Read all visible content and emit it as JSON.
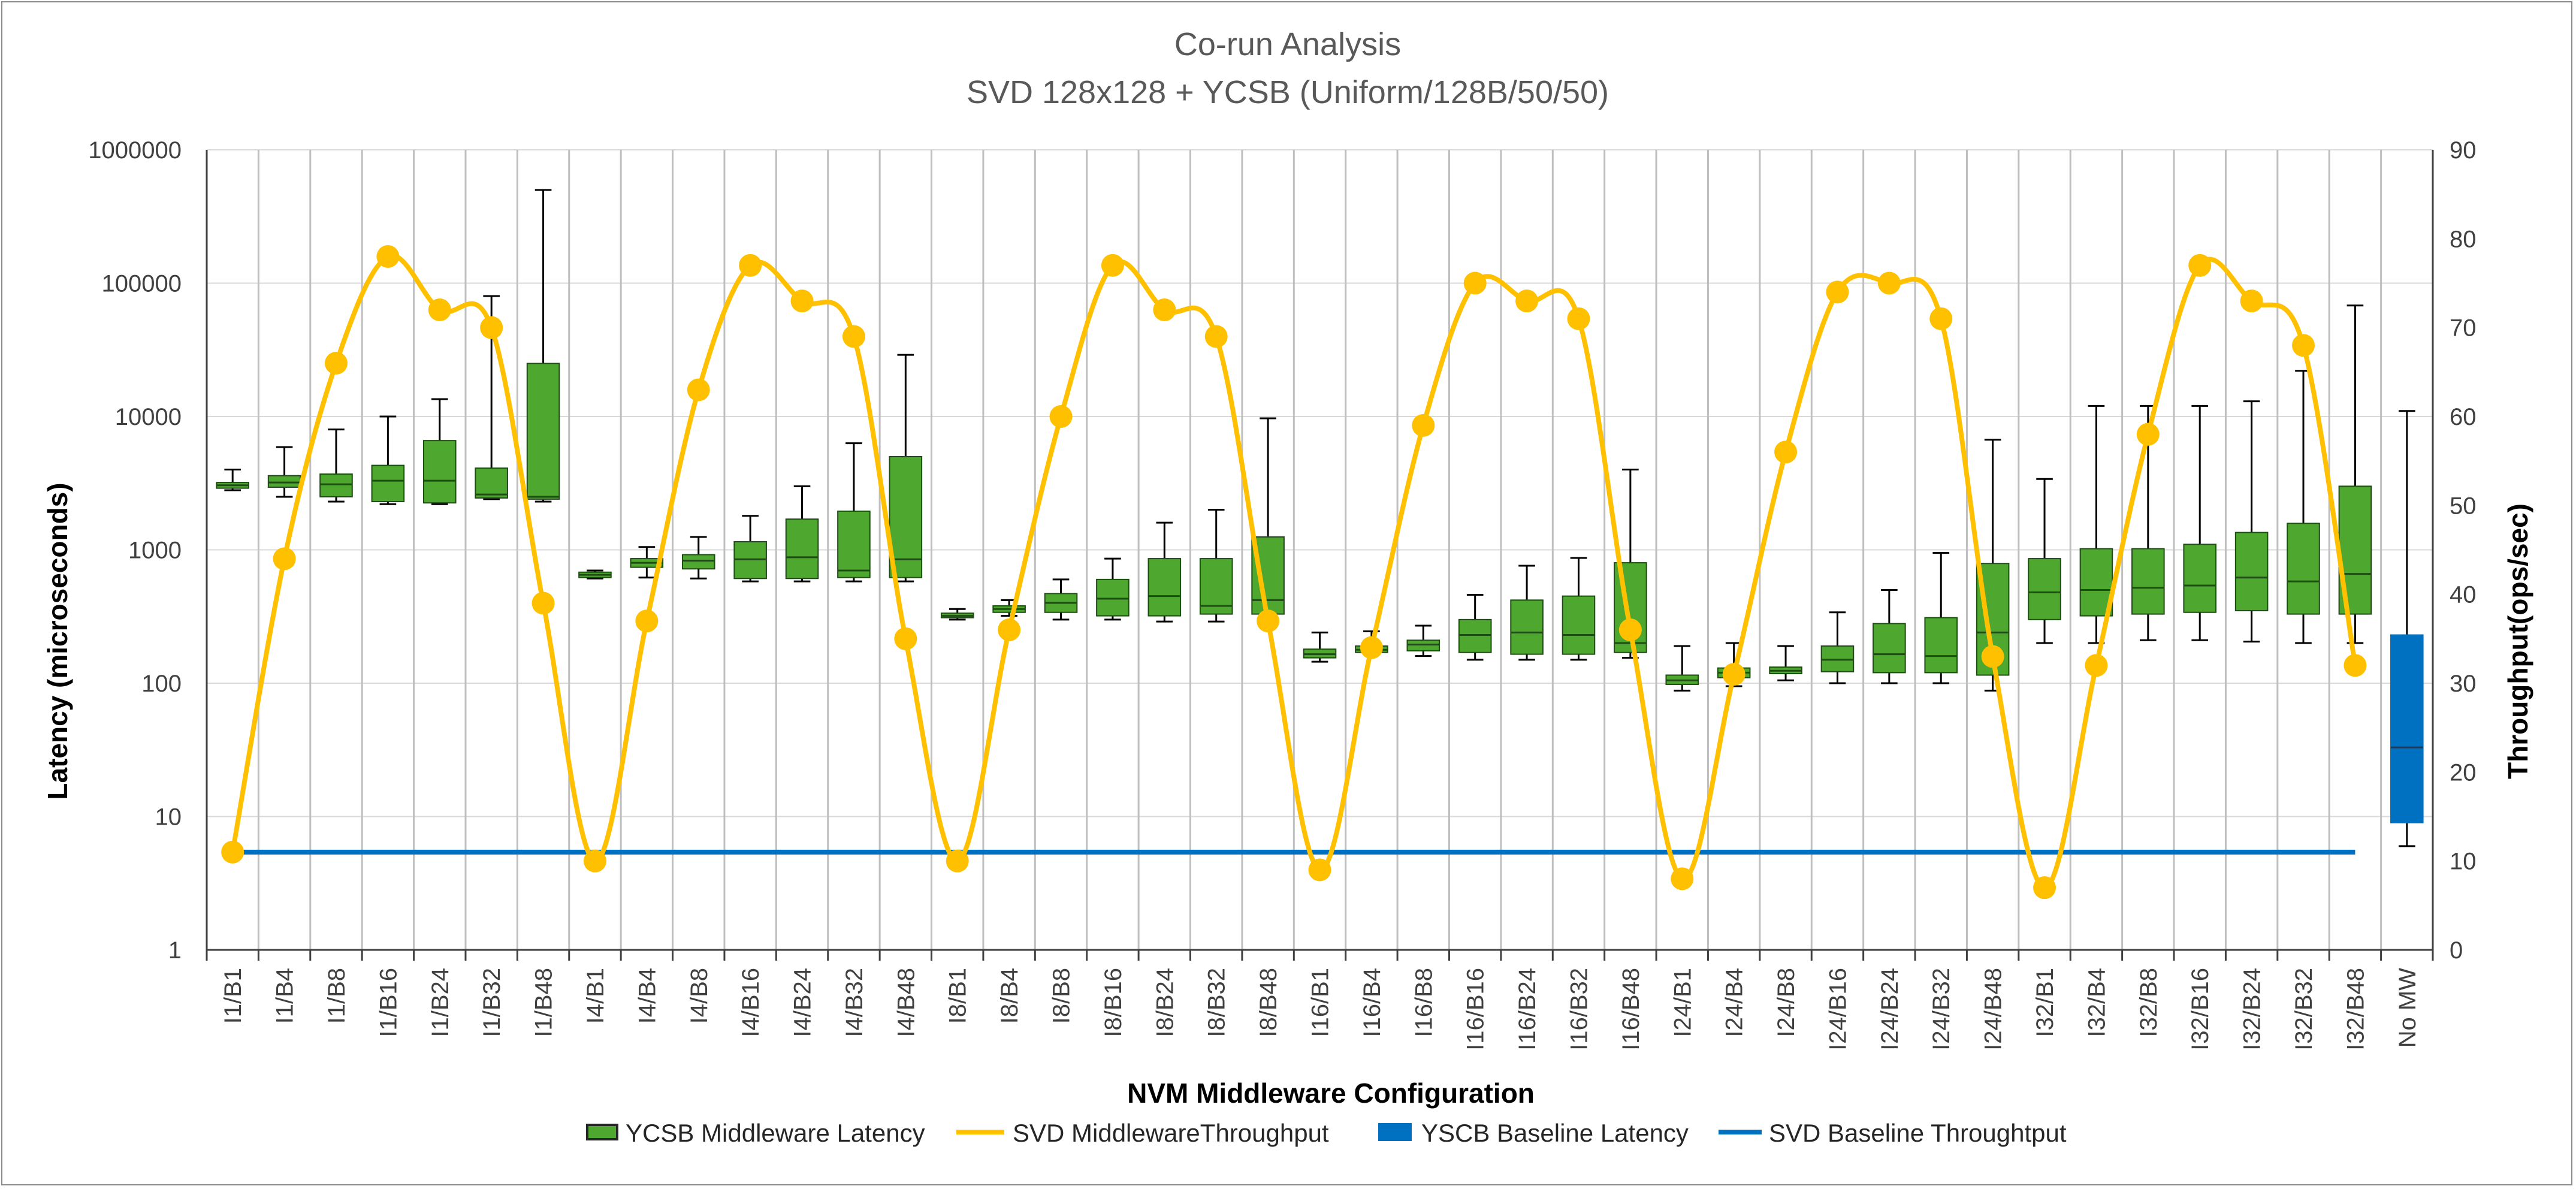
{
  "chart_data": {
    "type": "box",
    "title": "Co-run Analysis",
    "subtitle": "SVD 128x128 + YCSB (Uniform/128B/50/50)",
    "xlabel": "NVM Middleware Configuration",
    "ylabel": "Latency (microseconds)",
    "y2label": "Throughput(ops/sec)",
    "yscale": "log",
    "ylim": [
      1,
      1000000
    ],
    "y_ticks": [
      "1",
      "10",
      "100",
      "1000",
      "10000",
      "100000",
      "1000000"
    ],
    "y2lim": [
      0,
      90
    ],
    "y2_ticks": [
      "0",
      "10",
      "20",
      "30",
      "40",
      "50",
      "60",
      "70",
      "80",
      "90"
    ],
    "grid": true,
    "legend_position": "bottom",
    "categories": [
      "I1/B1",
      "I1/B4",
      "I1/B8",
      "I1/B16",
      "I1/B24",
      "I1/B32",
      "I1/B48",
      "I4/B1",
      "I4/B4",
      "I4/B8",
      "I4/B16",
      "I4/B24",
      "I4/B32",
      "I4/B48",
      "I8/B1",
      "I8/B4",
      "I8/B8",
      "I8/B16",
      "I8/B24",
      "I8/B32",
      "I8/B48",
      "I16/B1",
      "I16/B4",
      "I16/B8",
      "I16/B16",
      "I16/B24",
      "I16/B32",
      "I16/B48",
      "I24/B1",
      "I24/B4",
      "I24/B8",
      "I24/B16",
      "I24/B24",
      "I24/B32",
      "I24/B48",
      "I32/B1",
      "I32/B4",
      "I32/B8",
      "I32/B16",
      "I32/B24",
      "I32/B32",
      "I32/B48",
      "No MW"
    ],
    "series": [
      {
        "name": "YCSB Middleware Latency",
        "type": "box",
        "axis": "left",
        "color": "#4ea72e",
        "boxes": [
          {
            "min": 2800,
            "q1": 2900,
            "median": 3050,
            "q3": 3200,
            "max": 4000
          },
          {
            "min": 2500,
            "q1": 2950,
            "median": 3200,
            "q3": 3600,
            "max": 5900
          },
          {
            "min": 2300,
            "q1": 2500,
            "median": 3100,
            "q3": 3700,
            "max": 8000
          },
          {
            "min": 2200,
            "q1": 2300,
            "median": 3300,
            "q3": 4300,
            "max": 10000
          },
          {
            "min": 2200,
            "q1": 2250,
            "median": 3300,
            "q3": 6600,
            "max": 13500
          },
          {
            "min": 2400,
            "q1": 2450,
            "median": 2600,
            "q3": 4100,
            "max": 80000
          },
          {
            "min": 2300,
            "q1": 2400,
            "median": 2500,
            "q3": 25000,
            "max": 500000
          },
          {
            "min": 610,
            "q1": 620,
            "median": 650,
            "q3": 680,
            "max": 700
          },
          {
            "min": 620,
            "q1": 740,
            "median": 800,
            "q3": 860,
            "max": 1050
          },
          {
            "min": 610,
            "q1": 720,
            "median": 830,
            "q3": 920,
            "max": 1250
          },
          {
            "min": 580,
            "q1": 610,
            "median": 850,
            "q3": 1150,
            "max": 1800
          },
          {
            "min": 580,
            "q1": 610,
            "median": 880,
            "q3": 1700,
            "max": 3000
          },
          {
            "min": 580,
            "q1": 620,
            "median": 700,
            "q3": 1950,
            "max": 6300
          },
          {
            "min": 580,
            "q1": 620,
            "median": 850,
            "q3": 5000,
            "max": 29000
          },
          {
            "min": 300,
            "q1": 310,
            "median": 320,
            "q3": 335,
            "max": 360
          },
          {
            "min": 320,
            "q1": 340,
            "median": 360,
            "q3": 380,
            "max": 420
          },
          {
            "min": 300,
            "q1": 340,
            "median": 400,
            "q3": 470,
            "max": 600
          },
          {
            "min": 300,
            "q1": 320,
            "median": 430,
            "q3": 600,
            "max": 860
          },
          {
            "min": 290,
            "q1": 320,
            "median": 450,
            "q3": 860,
            "max": 1600
          },
          {
            "min": 290,
            "q1": 330,
            "median": 380,
            "q3": 860,
            "max": 2000
          },
          {
            "min": 290,
            "q1": 330,
            "median": 420,
            "q3": 1250,
            "max": 9700
          },
          {
            "min": 145,
            "q1": 155,
            "median": 165,
            "q3": 180,
            "max": 240
          },
          {
            "min": 165,
            "q1": 170,
            "median": 178,
            "q3": 190,
            "max": 245
          },
          {
            "min": 160,
            "q1": 175,
            "median": 195,
            "q3": 210,
            "max": 270
          },
          {
            "min": 150,
            "q1": 170,
            "median": 230,
            "q3": 300,
            "max": 460
          },
          {
            "min": 150,
            "q1": 165,
            "median": 240,
            "q3": 420,
            "max": 760
          },
          {
            "min": 150,
            "q1": 165,
            "median": 230,
            "q3": 450,
            "max": 870
          },
          {
            "min": 155,
            "q1": 170,
            "median": 200,
            "q3": 800,
            "max": 4000
          },
          {
            "min": 88,
            "q1": 98,
            "median": 105,
            "q3": 115,
            "max": 190
          },
          {
            "min": 95,
            "q1": 110,
            "median": 120,
            "q3": 130,
            "max": 200
          },
          {
            "min": 105,
            "q1": 118,
            "median": 124,
            "q3": 132,
            "max": 190
          },
          {
            "min": 100,
            "q1": 122,
            "median": 150,
            "q3": 190,
            "max": 340
          },
          {
            "min": 100,
            "q1": 120,
            "median": 165,
            "q3": 280,
            "max": 500
          },
          {
            "min": 100,
            "q1": 120,
            "median": 160,
            "q3": 310,
            "max": 950
          },
          {
            "min": 88,
            "q1": 115,
            "median": 240,
            "q3": 790,
            "max": 6700
          },
          {
            "min": 200,
            "q1": 300,
            "median": 480,
            "q3": 860,
            "max": 3400
          },
          {
            "min": 200,
            "q1": 320,
            "median": 500,
            "q3": 1020,
            "max": 12000
          },
          {
            "min": 210,
            "q1": 330,
            "median": 520,
            "q3": 1020,
            "max": 12000
          },
          {
            "min": 210,
            "q1": 340,
            "median": 540,
            "q3": 1100,
            "max": 12000
          },
          {
            "min": 205,
            "q1": 350,
            "median": 620,
            "q3": 1350,
            "max": 13000
          },
          {
            "min": 200,
            "q1": 330,
            "median": 580,
            "q3": 1580,
            "max": 22000
          },
          {
            "min": 200,
            "q1": 330,
            "median": 660,
            "q3": 3000,
            "max": 68000
          },
          null
        ]
      },
      {
        "name": "SVD MiddlewareThroughput",
        "type": "line",
        "axis": "right",
        "smooth": true,
        "markers": true,
        "color": "#ffc000",
        "values": [
          11,
          44,
          66,
          78,
          72,
          70,
          39,
          10,
          37,
          63,
          77,
          73,
          69,
          35,
          10,
          36,
          60,
          77,
          72,
          69,
          37,
          9,
          34,
          59,
          75,
          73,
          71,
          36,
          8,
          31,
          56,
          74,
          75,
          71,
          33,
          7,
          32,
          58,
          77,
          73,
          68,
          32,
          null
        ]
      },
      {
        "name": "YSCB Baseline Latency",
        "type": "box",
        "axis": "left",
        "color": "#0070c0",
        "boxes": [
          null,
          null,
          null,
          null,
          null,
          null,
          null,
          null,
          null,
          null,
          null,
          null,
          null,
          null,
          null,
          null,
          null,
          null,
          null,
          null,
          null,
          null,
          null,
          null,
          null,
          null,
          null,
          null,
          null,
          null,
          null,
          null,
          null,
          null,
          null,
          null,
          null,
          null,
          null,
          null,
          null,
          null,
          {
            "min": 6,
            "q1": 9,
            "median": 33,
            "q3": 230,
            "max": 11000
          }
        ]
      },
      {
        "name": "SVD Baseline Throughtput",
        "type": "line",
        "axis": "right",
        "color": "#0070c0",
        "value": 11,
        "from": "I1/B1",
        "to": "I32/B48"
      }
    ]
  }
}
